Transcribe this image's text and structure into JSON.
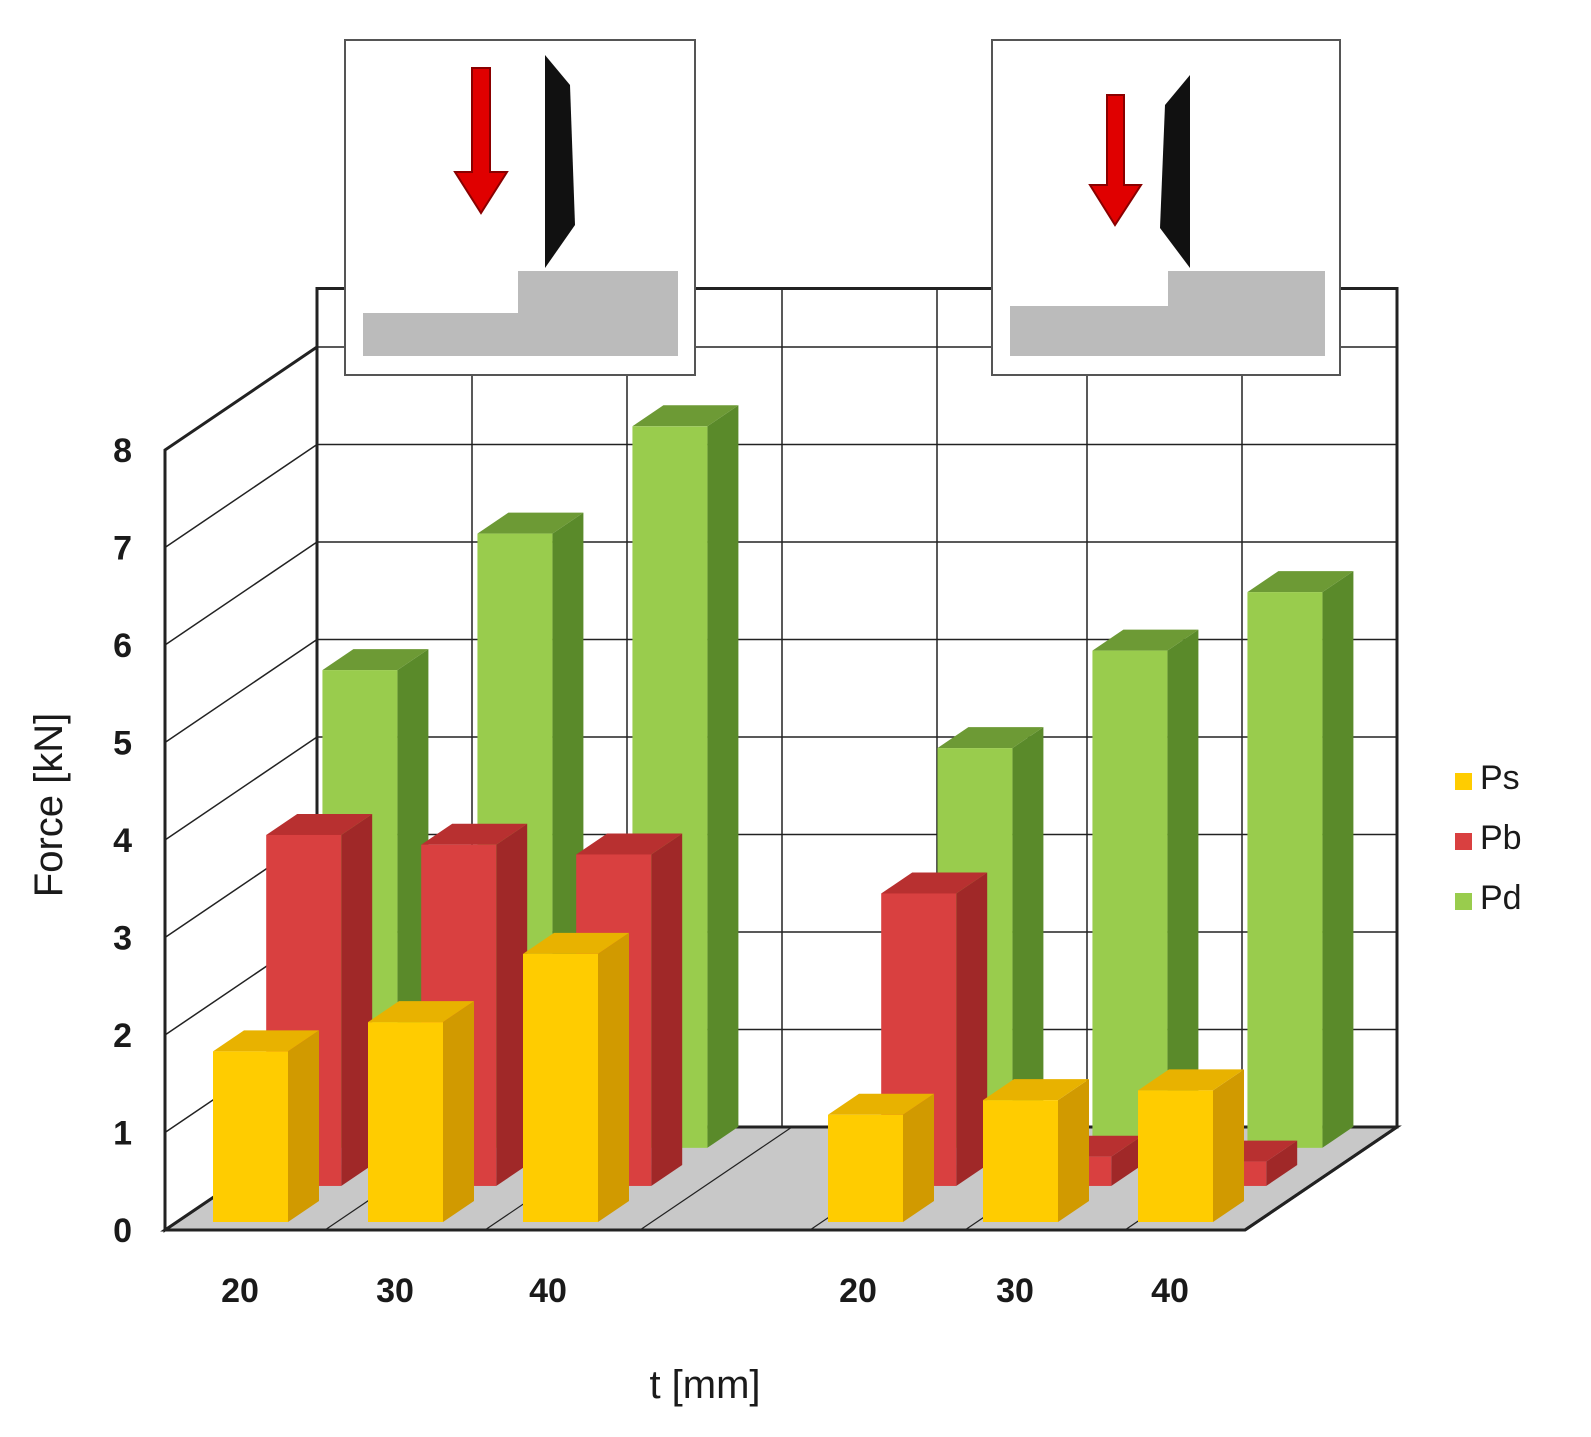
{
  "chart_data": {
    "type": "bar",
    "subtype": "3d-clustered",
    "ylabel": "Force [kN]",
    "xlabel": "t [mm]",
    "ylim": [
      0,
      8
    ],
    "yticks": [
      0,
      1,
      2,
      3,
      4,
      5,
      6,
      7,
      8
    ],
    "grid": true,
    "legend_position": "right",
    "groups": [
      {
        "diagram": "left",
        "categories": [
          "20",
          "30",
          "40"
        ],
        "series": [
          {
            "name": "Ps",
            "values": [
              1.75,
              2.05,
              2.75
            ]
          },
          {
            "name": "Pb",
            "values": [
              3.6,
              3.5,
              3.4
            ]
          },
          {
            "name": "Pd",
            "values": [
              4.9,
              6.3,
              7.4
            ]
          }
        ]
      },
      {
        "diagram": "right",
        "categories": [
          "20",
          "30",
          "40"
        ],
        "series": [
          {
            "name": "Ps",
            "values": [
              1.1,
              1.25,
              1.35
            ]
          },
          {
            "name": "Pb",
            "values": [
              3.0,
              0.3,
              0.25
            ]
          },
          {
            "name": "Pd",
            "values": [
              4.1,
              5.1,
              5.7
            ]
          }
        ]
      }
    ],
    "colors": {
      "Ps": {
        "front": "#ffcc00",
        "side": "#d19a00",
        "top": "#e8b200"
      },
      "Pb": {
        "front": "#d94040",
        "side": "#a02828",
        "top": "#b83030"
      },
      "Pd": {
        "front": "#99cc4d",
        "side": "#5a8a2a",
        "top": "#6d9a35"
      },
      "floor": "#c8c8c8",
      "grid": "#222222",
      "arrow": "#e00000",
      "tool": "#111111",
      "workpiece": "#bbbbbb"
    }
  }
}
